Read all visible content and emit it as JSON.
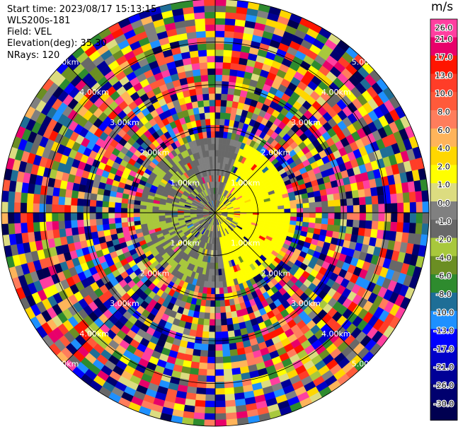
{
  "header": {
    "start_time": "Start time: 2023/08/17 15:13:15",
    "radar": "WLS200s-181",
    "field": "Field: VEL",
    "elevation": "Elevation(deg): 35.30",
    "nrays": "NRays: 120"
  },
  "colorbar": {
    "unit": "m/s",
    "levels": [
      "26.0",
      "21.0",
      "17.0",
      "13.0",
      "10.0",
      "8.0",
      "6.0",
      "4.0",
      "2.0",
      "1.0",
      "0.0",
      "-1.0",
      "-2.0",
      "-4.0",
      "-6.0",
      "-8.0",
      "-10.0",
      "-13.0",
      "-17.0",
      "-21.0",
      "-26.0",
      "-30.0"
    ],
    "colors": [
      "#ff3fa0",
      "#e8006a",
      "#ff1500",
      "#ff3d28",
      "#ff5a3a",
      "#ff7d5c",
      "#ffb45a",
      "#ffd700",
      "#ffff00",
      "#dcdc80",
      "#808080",
      "#686868",
      "#a8c83c",
      "#6b8e23",
      "#2e8b2e",
      "#1e6e96",
      "#1e90ff",
      "#0000ff",
      "#0000c8",
      "#000096",
      "#00006e",
      "#000050"
    ]
  },
  "chart_data": {
    "type": "heatmap",
    "title": "",
    "field": "VEL",
    "unit": "m/s",
    "n_rays": 120,
    "elevation_deg": 35.3,
    "range_ring_labels": [
      "1.00km",
      "2.00km",
      "3.00km",
      "4.00km",
      "5.00km"
    ],
    "range_rings_km": [
      1,
      2,
      3,
      4,
      5
    ],
    "max_range_km": 5.0,
    "pattern": {
      "clean_region_max_range_km": 1.75,
      "west_sector_velocity_ms": [
        -2,
        0
      ],
      "east_sector_velocity_ms": [
        2,
        4
      ],
      "beyond_clean_region": "noise"
    }
  }
}
